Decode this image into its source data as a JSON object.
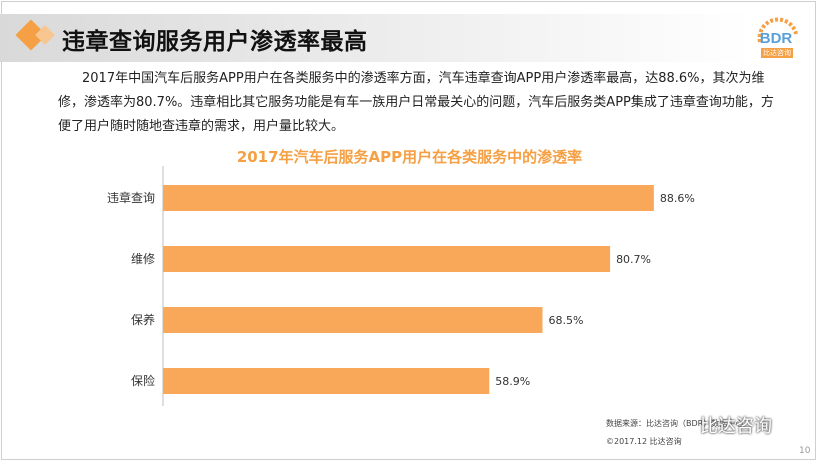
{
  "header": {
    "title": "违章查询服务用户渗透率最高",
    "logo_text": "BDR",
    "logo_sub": "比达咨询"
  },
  "body_text": "2017年中国汽车后服务APP用户在各类服务中的渗透率方面，汽车违章查询APP用户渗透率最高，达88.6%，其次为维修，渗透率为80.7%。违章相比其它服务功能是有车一族用户日常最关心的问题，汽车后服务类APP集成了违章查询功能，方便了用户随时随地查违章的需求，用户量比较大。",
  "chart_data": {
    "type": "bar",
    "orientation": "horizontal",
    "title": "2017年汽车后服务APP用户在各类服务中的渗透率",
    "categories": [
      "违章查询",
      "维修",
      "保养",
      "保险"
    ],
    "values": [
      88.6,
      80.7,
      68.5,
      58.9
    ],
    "value_labels": [
      "88.6%",
      "80.7%",
      "68.5%",
      "58.9%"
    ],
    "xlim": [
      0,
      100
    ],
    "grid": false,
    "legend": "none",
    "bar_color": "#f8a858",
    "axis_color": "#bfbfbf"
  },
  "footer": {
    "source": "数据来源：比达咨询（BDR）数据中心",
    "copyright": "©2017.12 比达咨询",
    "watermark": "比达咨询",
    "page_number": "10"
  }
}
